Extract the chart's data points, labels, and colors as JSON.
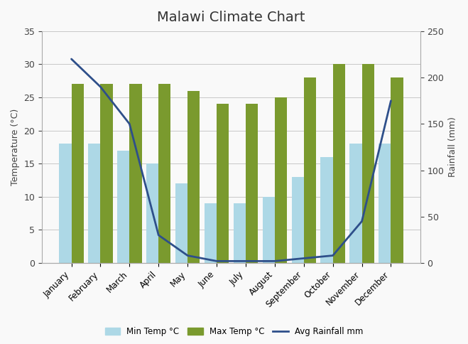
{
  "title": "Malawi Climate Chart",
  "months": [
    "January",
    "February",
    "March",
    "April",
    "May",
    "June",
    "July",
    "August",
    "September",
    "October",
    "November",
    "December"
  ],
  "min_temp": [
    18,
    18,
    17,
    15,
    12,
    9,
    9,
    10,
    13,
    16,
    18,
    18
  ],
  "max_temp": [
    27,
    27,
    27,
    27,
    26,
    24,
    24,
    25,
    28,
    30,
    30,
    28
  ],
  "avg_rainfall": [
    220,
    190,
    150,
    30,
    8,
    2,
    2,
    2,
    5,
    8,
    45,
    175
  ],
  "bar_color_min": "#add8e6",
  "bar_color_max": "#7a9a2e",
  "line_color": "#2e4f8a",
  "ylabel_left": "Temperature (°C)",
  "ylabel_right": "Rainfall (mm)",
  "ylim_left": [
    0,
    35
  ],
  "ylim_right": [
    0,
    250
  ],
  "yticks_left": [
    0,
    5,
    10,
    15,
    20,
    25,
    30,
    35
  ],
  "yticks_right": [
    0,
    50,
    100,
    150,
    200,
    250
  ],
  "legend_labels": [
    "Min Temp °C",
    "Max Temp °C",
    "Avg Rainfall mm"
  ],
  "background_color": "#f9f9f9",
  "title_fontsize": 14,
  "figsize": [
    6.59,
    4.84
  ],
  "dpi": 100
}
